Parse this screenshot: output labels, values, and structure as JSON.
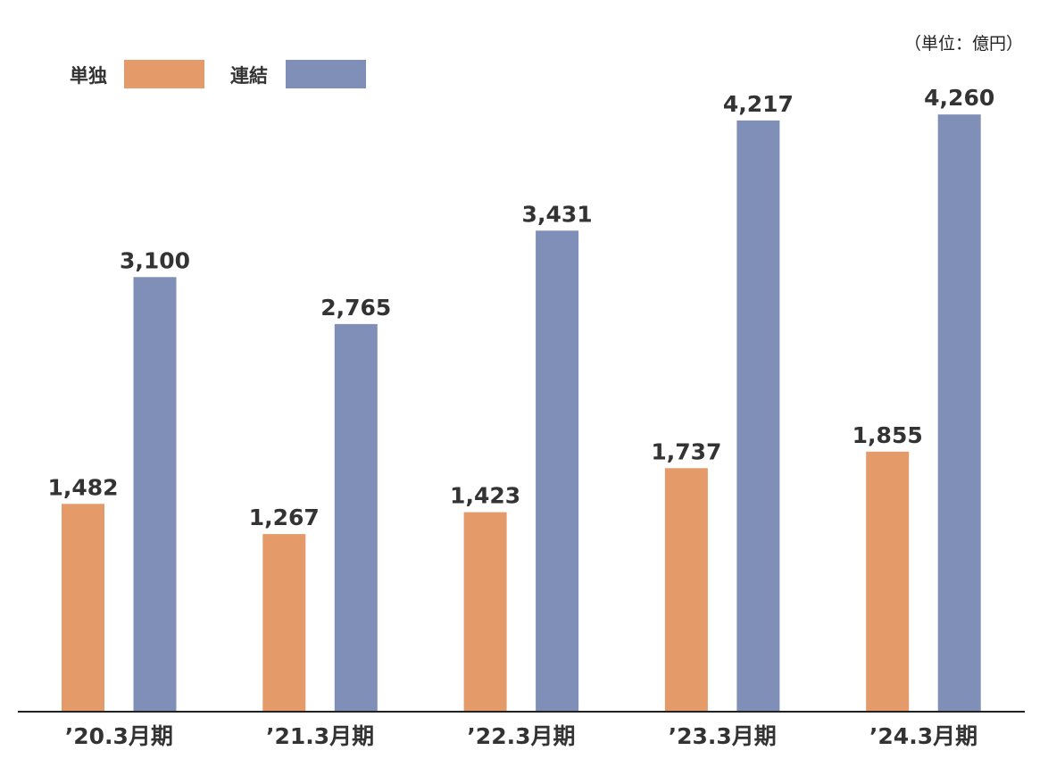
{
  "chart_data": {
    "type": "bar",
    "unit_label": "（単位：億円）",
    "categories": [
      "’20.3月期",
      "’21.3月期",
      "’22.3月期",
      "’23.3月期",
      "’24.3月期"
    ],
    "series": [
      {
        "name": "単独",
        "color": "#e59a69",
        "values": [
          1482,
          1267,
          1423,
          1737,
          1855
        ],
        "labels": [
          "1,482",
          "1,267",
          "1,423",
          "1,737",
          "1,855"
        ]
      },
      {
        "name": "連結",
        "color": "#7f8fb7",
        "values": [
          3100,
          2765,
          3431,
          4217,
          4260
        ],
        "labels": [
          "3,100",
          "2,765",
          "3,431",
          "4,217",
          "4,260"
        ]
      }
    ],
    "ylim": [
      0,
      4700
    ],
    "grid": false,
    "legend_position": "top-left",
    "axis_line_color": "#222222"
  }
}
